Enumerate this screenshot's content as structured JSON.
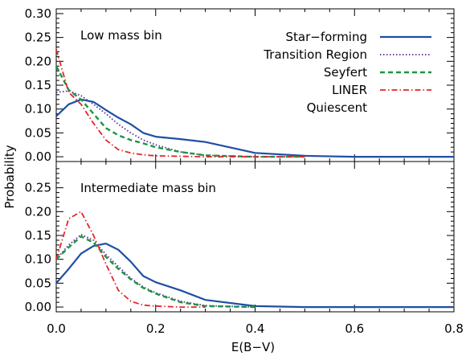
{
  "chart_data": {
    "type": "line",
    "xlabel": "E(B−V)",
    "ylabel": "Probability",
    "xlim": [
      0.0,
      0.8
    ],
    "x_ticks": [
      0.0,
      0.2,
      0.4,
      0.6,
      0.8
    ],
    "x_tick_labels": [
      "0.0",
      "0.2",
      "0.4",
      "0.6",
      "0.8"
    ],
    "y_ticks": [
      0.0,
      0.05,
      0.1,
      0.15,
      0.2,
      0.25
    ],
    "legend_position": "top-right",
    "legend": [
      {
        "label": "Star−forming",
        "color": "#1f4fa3",
        "style": "solid"
      },
      {
        "label": "Transition Region",
        "color": "#5a2d91",
        "style": "dotted"
      },
      {
        "label": "Seyfert",
        "color": "#1a9641",
        "style": "dashed"
      },
      {
        "label": "LINER",
        "color": "#e3262a",
        "style": "dashdot"
      },
      {
        "label": "Quiescent",
        "color": "",
        "style": "none"
      }
    ],
    "panels": [
      {
        "label": "Low mass bin",
        "ylim": [
          -0.01,
          0.31
        ],
        "y_tick_labels": [
          "0.00",
          "0.05",
          "0.10",
          "0.15",
          "0.20",
          "0.25",
          "0.30"
        ],
        "y_ticks": [
          0.0,
          0.05,
          0.1,
          0.15,
          0.2,
          0.25,
          0.3
        ],
        "series": [
          {
            "name": "Star−forming",
            "x": [
              0.0,
              0.025,
              0.05,
              0.075,
              0.1,
              0.125,
              0.15,
              0.175,
              0.2,
              0.25,
              0.3,
              0.4,
              0.5,
              0.6,
              0.8
            ],
            "y": [
              0.085,
              0.11,
              0.12,
              0.115,
              0.098,
              0.082,
              0.068,
              0.05,
              0.042,
              0.037,
              0.031,
              0.008,
              0.002,
              0.0,
              0.0
            ]
          },
          {
            "name": "Transition Region",
            "x": [
              0.0,
              0.025,
              0.05,
              0.075,
              0.1,
              0.125,
              0.15,
              0.175,
              0.2,
              0.25,
              0.3,
              0.4,
              0.5
            ],
            "y": [
              0.135,
              0.138,
              0.128,
              0.11,
              0.09,
              0.068,
              0.05,
              0.035,
              0.025,
              0.01,
              0.003,
              0.0,
              0.0
            ]
          },
          {
            "name": "Seyfert",
            "x": [
              0.0,
              0.025,
              0.05,
              0.075,
              0.1,
              0.125,
              0.15,
              0.175,
              0.2,
              0.25,
              0.3,
              0.4,
              0.5
            ],
            "y": [
              0.19,
              0.14,
              0.12,
              0.09,
              0.06,
              0.045,
              0.035,
              0.028,
              0.02,
              0.01,
              0.003,
              0.0,
              0.0
            ]
          },
          {
            "name": "LINER",
            "x": [
              0.0,
              0.025,
              0.05,
              0.075,
              0.1,
              0.125,
              0.15,
              0.175,
              0.2,
              0.25,
              0.3,
              0.4,
              0.5
            ],
            "y": [
              0.225,
              0.135,
              0.11,
              0.07,
              0.035,
              0.015,
              0.008,
              0.004,
              0.002,
              0.001,
              0.0,
              0.0,
              0.0
            ]
          }
        ]
      },
      {
        "label": "Intermediate mass bin",
        "ylim": [
          -0.01,
          0.305
        ],
        "y_tick_labels": [
          "0.00",
          "0.05",
          "0.10",
          "0.15",
          "0.20",
          "0.25"
        ],
        "y_ticks": [
          0.0,
          0.05,
          0.1,
          0.15,
          0.2,
          0.25
        ],
        "series": [
          {
            "name": "Star−forming",
            "x": [
              0.0,
              0.025,
              0.05,
              0.075,
              0.1,
              0.125,
              0.15,
              0.175,
              0.2,
              0.25,
              0.3,
              0.4,
              0.5,
              0.6,
              0.8
            ],
            "y": [
              0.05,
              0.08,
              0.112,
              0.128,
              0.133,
              0.12,
              0.095,
              0.065,
              0.052,
              0.035,
              0.015,
              0.002,
              0.0,
              0.0,
              0.0
            ]
          },
          {
            "name": "Transition Region",
            "x": [
              0.0,
              0.025,
              0.05,
              0.075,
              0.1,
              0.125,
              0.15,
              0.175,
              0.2,
              0.25,
              0.3,
              0.4
            ],
            "y": [
              0.1,
              0.13,
              0.152,
              0.14,
              0.11,
              0.085,
              0.06,
              0.042,
              0.03,
              0.012,
              0.003,
              0.0
            ]
          },
          {
            "name": "Seyfert",
            "x": [
              0.0,
              0.025,
              0.05,
              0.075,
              0.1,
              0.125,
              0.15,
              0.175,
              0.2,
              0.25,
              0.3,
              0.4
            ],
            "y": [
              0.1,
              0.125,
              0.148,
              0.135,
              0.105,
              0.08,
              0.058,
              0.04,
              0.028,
              0.01,
              0.002,
              0.0
            ]
          },
          {
            "name": "LINER",
            "x": [
              0.0,
              0.025,
              0.05,
              0.075,
              0.1,
              0.125,
              0.15,
              0.175,
              0.2,
              0.25,
              0.3
            ],
            "y": [
              0.1,
              0.185,
              0.2,
              0.15,
              0.09,
              0.035,
              0.012,
              0.004,
              0.002,
              0.0,
              0.0
            ]
          }
        ]
      }
    ]
  }
}
